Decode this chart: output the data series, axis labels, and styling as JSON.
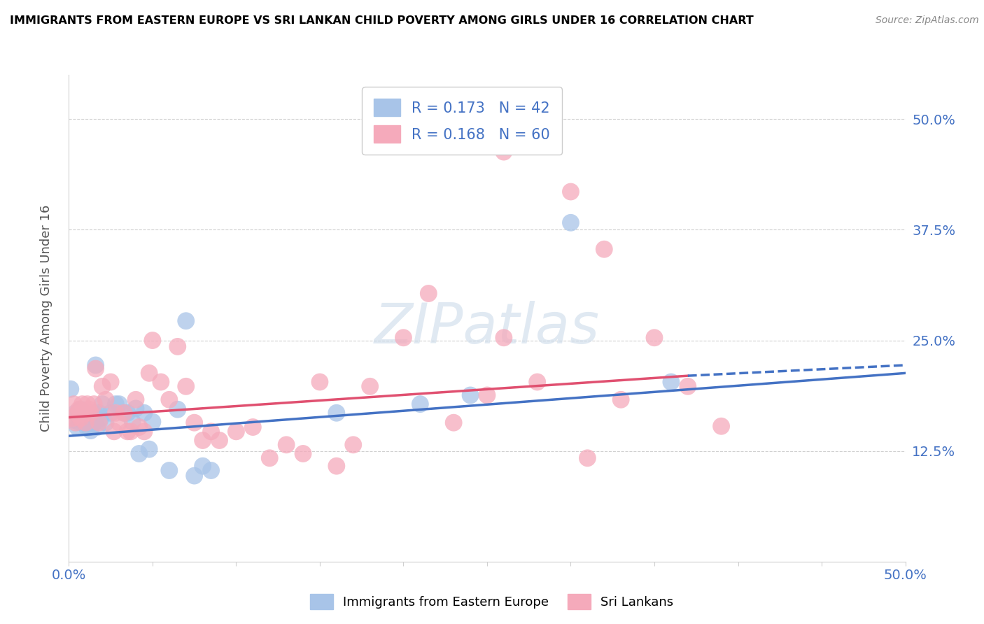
{
  "title": "IMMIGRANTS FROM EASTERN EUROPE VS SRI LANKAN CHILD POVERTY AMONG GIRLS UNDER 16 CORRELATION CHART",
  "source": "Source: ZipAtlas.com",
  "ylabel": "Child Poverty Among Girls Under 16",
  "yticks": [
    "12.5%",
    "25.0%",
    "37.5%",
    "50.0%"
  ],
  "ytick_vals": [
    0.125,
    0.25,
    0.375,
    0.5
  ],
  "legend_labels": [
    "Immigrants from Eastern Europe",
    "Sri Lankans"
  ],
  "legend_r": [
    "R = 0.173",
    "R = 0.168"
  ],
  "legend_n": [
    "N = 42",
    "N = 60"
  ],
  "color_blue": "#a8c4e8",
  "color_pink": "#f5aabb",
  "line_blue": "#4472c4",
  "line_pink": "#e05070",
  "watermark": "ZIPatlas",
  "blue_points": [
    [
      0.001,
      0.195
    ],
    [
      0.003,
      0.16
    ],
    [
      0.004,
      0.168
    ],
    [
      0.005,
      0.152
    ],
    [
      0.006,
      0.158
    ],
    [
      0.007,
      0.172
    ],
    [
      0.008,
      0.166
    ],
    [
      0.009,
      0.162
    ],
    [
      0.01,
      0.156
    ],
    [
      0.011,
      0.151
    ],
    [
      0.012,
      0.163
    ],
    [
      0.013,
      0.148
    ],
    [
      0.014,
      0.153
    ],
    [
      0.015,
      0.167
    ],
    [
      0.016,
      0.222
    ],
    [
      0.017,
      0.152
    ],
    [
      0.018,
      0.168
    ],
    [
      0.019,
      0.162
    ],
    [
      0.02,
      0.178
    ],
    [
      0.022,
      0.157
    ],
    [
      0.025,
      0.168
    ],
    [
      0.028,
      0.178
    ],
    [
      0.03,
      0.178
    ],
    [
      0.033,
      0.168
    ],
    [
      0.035,
      0.168
    ],
    [
      0.038,
      0.158
    ],
    [
      0.04,
      0.173
    ],
    [
      0.042,
      0.122
    ],
    [
      0.045,
      0.168
    ],
    [
      0.048,
      0.127
    ],
    [
      0.05,
      0.158
    ],
    [
      0.06,
      0.103
    ],
    [
      0.065,
      0.172
    ],
    [
      0.07,
      0.272
    ],
    [
      0.075,
      0.097
    ],
    [
      0.08,
      0.108
    ],
    [
      0.085,
      0.103
    ],
    [
      0.16,
      0.168
    ],
    [
      0.21,
      0.178
    ],
    [
      0.24,
      0.188
    ],
    [
      0.3,
      0.383
    ],
    [
      0.36,
      0.203
    ]
  ],
  "pink_points": [
    [
      0.002,
      0.162
    ],
    [
      0.003,
      0.178
    ],
    [
      0.004,
      0.157
    ],
    [
      0.005,
      0.167
    ],
    [
      0.006,
      0.172
    ],
    [
      0.007,
      0.162
    ],
    [
      0.008,
      0.178
    ],
    [
      0.009,
      0.167
    ],
    [
      0.01,
      0.157
    ],
    [
      0.011,
      0.178
    ],
    [
      0.012,
      0.172
    ],
    [
      0.013,
      0.168
    ],
    [
      0.015,
      0.178
    ],
    [
      0.016,
      0.218
    ],
    [
      0.018,
      0.157
    ],
    [
      0.02,
      0.198
    ],
    [
      0.022,
      0.183
    ],
    [
      0.025,
      0.203
    ],
    [
      0.027,
      0.147
    ],
    [
      0.028,
      0.168
    ],
    [
      0.03,
      0.157
    ],
    [
      0.033,
      0.168
    ],
    [
      0.035,
      0.147
    ],
    [
      0.037,
      0.147
    ],
    [
      0.04,
      0.183
    ],
    [
      0.042,
      0.152
    ],
    [
      0.045,
      0.147
    ],
    [
      0.048,
      0.213
    ],
    [
      0.05,
      0.25
    ],
    [
      0.055,
      0.203
    ],
    [
      0.06,
      0.183
    ],
    [
      0.065,
      0.243
    ],
    [
      0.07,
      0.198
    ],
    [
      0.075,
      0.157
    ],
    [
      0.08,
      0.137
    ],
    [
      0.085,
      0.147
    ],
    [
      0.09,
      0.137
    ],
    [
      0.1,
      0.147
    ],
    [
      0.11,
      0.152
    ],
    [
      0.12,
      0.117
    ],
    [
      0.13,
      0.132
    ],
    [
      0.14,
      0.122
    ],
    [
      0.15,
      0.203
    ],
    [
      0.16,
      0.108
    ],
    [
      0.17,
      0.132
    ],
    [
      0.18,
      0.198
    ],
    [
      0.2,
      0.253
    ],
    [
      0.23,
      0.157
    ],
    [
      0.25,
      0.188
    ],
    [
      0.26,
      0.253
    ],
    [
      0.28,
      0.203
    ],
    [
      0.31,
      0.117
    ],
    [
      0.33,
      0.183
    ],
    [
      0.35,
      0.253
    ],
    [
      0.37,
      0.198
    ],
    [
      0.39,
      0.153
    ],
    [
      0.26,
      0.463
    ],
    [
      0.3,
      0.418
    ],
    [
      0.32,
      0.353
    ],
    [
      0.215,
      0.303
    ]
  ],
  "xlim": [
    0.0,
    0.5
  ],
  "ylim": [
    0.0,
    0.55
  ],
  "blue_line_x": [
    0.0,
    0.5
  ],
  "blue_line_y": [
    0.142,
    0.213
  ],
  "pink_line_x": [
    0.0,
    0.37
  ],
  "pink_line_y": [
    0.163,
    0.21
  ],
  "dashed_line_x": [
    0.37,
    0.5
  ],
  "dashed_line_y": [
    0.21,
    0.222
  ]
}
